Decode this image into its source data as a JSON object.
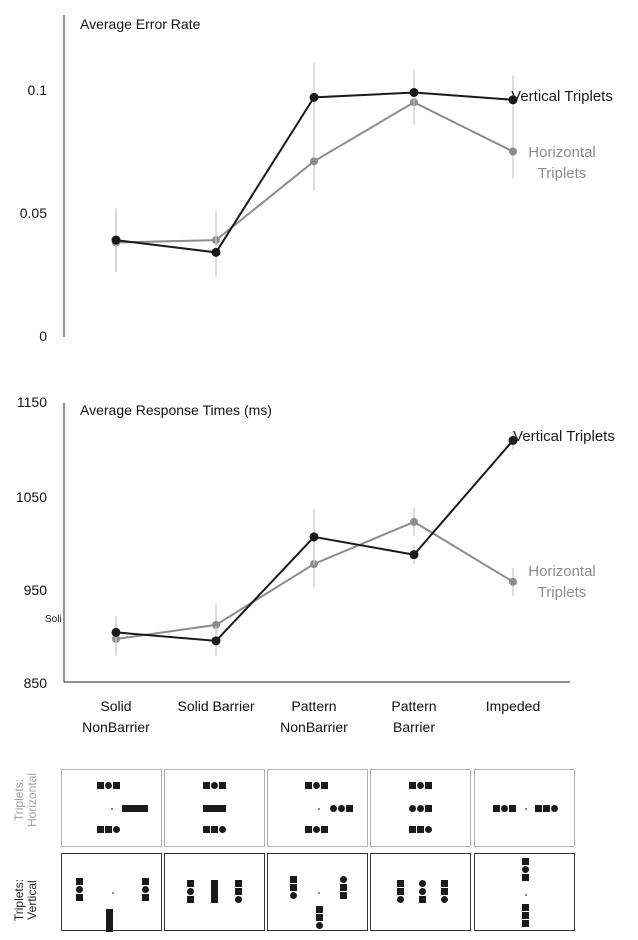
{
  "chart_data": [
    {
      "type": "line",
      "title": "Average Error Rate",
      "xlabel": "",
      "ylabel": "",
      "ylim": [
        0,
        0.12
      ],
      "yticks": [
        "0",
        "0.05",
        "0.1"
      ],
      "categories": [
        "Solid NonBarrier",
        "Solid Barrier",
        "Pattern NonBarrier",
        "Pattern Barrier",
        "Impeded"
      ],
      "series": [
        {
          "name": "Vertical Triplets",
          "color": "#1a1a1a",
          "values": [
            0.039,
            0.034,
            0.097,
            0.099,
            0.096
          ],
          "err": [
            0.013,
            0.01,
            0.014,
            0.009,
            0.01
          ]
        },
        {
          "name": "Horizontal Triplets",
          "color": "#8c8c8c",
          "values": [
            0.038,
            0.039,
            0.071,
            0.095,
            0.075
          ],
          "err": [
            0.012,
            0.012,
            0.012,
            0.009,
            0.011
          ]
        }
      ],
      "legend_labels": [
        {
          "lines": [
            "Vertical Triplets"
          ],
          "color": "#1a1a1a"
        },
        {
          "lines": [
            "Horizontal",
            "Triplets"
          ],
          "color": "#8c8c8c"
        }
      ]
    },
    {
      "type": "line",
      "title": "Average Response Times (ms)",
      "xlabel": "",
      "ylabel": "",
      "ylim": [
        850,
        1150
      ],
      "yticks": [
        "850",
        "950",
        "1050",
        "1150"
      ],
      "categories": [
        "Solid NonBarrier",
        "Solid Barrier",
        "Pattern NonBarrier",
        "Pattern Barrier",
        "Impeded"
      ],
      "category_labels": [
        [
          "Solid",
          "NonBarrier"
        ],
        [
          "Solid Barrier"
        ],
        [
          "Pattern",
          "NonBarrier"
        ],
        [
          "Pattern",
          "Barrier"
        ],
        [
          "Impeded"
        ]
      ],
      "series": [
        {
          "name": "Vertical Triplets",
          "color": "#1a1a1a",
          "values": [
            904,
            895,
            1006,
            987,
            1109
          ],
          "err": [
            18,
            16,
            30,
            10,
            10
          ]
        },
        {
          "name": "Horizontal Triplets",
          "color": "#8c8c8c",
          "values": [
            897,
            912,
            977,
            1022,
            958
          ],
          "err": [
            18,
            22,
            25,
            15,
            15
          ]
        }
      ],
      "legend_labels": [
        {
          "lines": [
            "Vertical Triplets"
          ],
          "color": "#1a1a1a"
        },
        {
          "lines": [
            "Horizontal",
            "Triplets"
          ],
          "color": "#8c8c8c"
        }
      ]
    }
  ],
  "stray_text": "Soli",
  "stimulus_rows": [
    {
      "label_lines": [
        "Triplets:",
        "Horizontal"
      ],
      "label_color": "#a0a0a0",
      "border_color": "#b0b0b0"
    },
    {
      "label_lines": [
        "Triplets:",
        "Vertical"
      ],
      "label_color": "#222222",
      "border_color": "#333333"
    }
  ]
}
